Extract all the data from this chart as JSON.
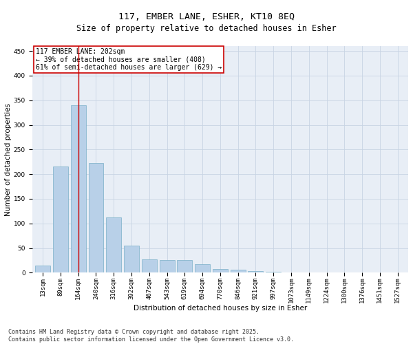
{
  "title_line1": "117, EMBER LANE, ESHER, KT10 8EQ",
  "title_line2": "Size of property relative to detached houses in Esher",
  "xlabel": "Distribution of detached houses by size in Esher",
  "ylabel": "Number of detached properties",
  "categories": [
    "13sqm",
    "89sqm",
    "164sqm",
    "240sqm",
    "316sqm",
    "392sqm",
    "467sqm",
    "543sqm",
    "619sqm",
    "694sqm",
    "770sqm",
    "846sqm",
    "921sqm",
    "997sqm",
    "1073sqm",
    "1149sqm",
    "1224sqm",
    "1300sqm",
    "1376sqm",
    "1451sqm",
    "1527sqm"
  ],
  "values": [
    14,
    216,
    340,
    222,
    112,
    55,
    27,
    26,
    25,
    17,
    8,
    6,
    4,
    2,
    1,
    0,
    0,
    1,
    0,
    0,
    1
  ],
  "bar_color": "#b8d0e8",
  "bar_edge_color": "#7aafc8",
  "highlight_bar_index": 2,
  "highlight_line_color": "#cc0000",
  "annotation_text": "117 EMBER LANE: 202sqm\n← 39% of detached houses are smaller (408)\n61% of semi-detached houses are larger (629) →",
  "annotation_box_color": "#ffffff",
  "annotation_box_edge_color": "#cc0000",
  "ylim": [
    0,
    460
  ],
  "yticks": [
    0,
    50,
    100,
    150,
    200,
    250,
    300,
    350,
    400,
    450
  ],
  "grid_color": "#c8d4e4",
  "bg_color": "#e8eef6",
  "footnote": "Contains HM Land Registry data © Crown copyright and database right 2025.\nContains public sector information licensed under the Open Government Licence v3.0.",
  "title_fontsize": 9.5,
  "subtitle_fontsize": 8.5,
  "axis_label_fontsize": 7.5,
  "tick_fontsize": 6.5,
  "annotation_fontsize": 7.0,
  "footnote_fontsize": 6.0
}
